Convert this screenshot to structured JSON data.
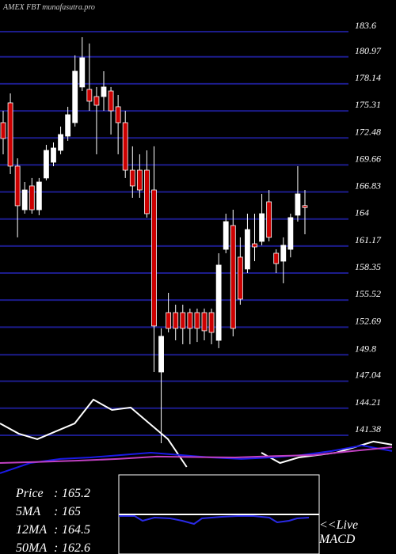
{
  "chart_data": {
    "type": "candlestick",
    "title": "AMEX FBT munafasutra.pro",
    "up_color": "#ffffff",
    "down_color": "#cc0000",
    "grid_color": "#1c1c8c",
    "ylim": [
      128.96,
      186.91
    ],
    "yticks": [
      183.6,
      180.97,
      178.14,
      175.31,
      172.48,
      169.66,
      166.83,
      164,
      161.17,
      158.35,
      155.52,
      152.69,
      149.8,
      147.04,
      144.21,
      141.38
    ],
    "open": [
      174.08,
      176.15,
      169.53,
      164.97,
      167.46,
      164.97,
      168.29,
      169.94,
      171.18,
      172.67,
      174.08,
      177.81,
      177.56,
      176.81,
      176.81,
      177.39,
      175.74,
      174.08,
      169.11,
      169.11,
      169.11,
      167.04,
      148.0,
      154.21,
      154.21,
      154.21,
      154.21,
      154.21,
      154.21,
      154.21,
      151.31,
      160.83,
      163.32,
      160.01,
      158.77,
      161.41,
      161.66,
      165.8,
      160.42,
      159.59,
      160.83,
      164.4,
      165.4
    ],
    "high": [
      175.32,
      177.14,
      170.35,
      167.87,
      168.29,
      168.29,
      171.76,
      172.01,
      173.67,
      175.74,
      181.12,
      183.02,
      182.36,
      177.81,
      179.46,
      177.81,
      176.98,
      175.32,
      171.6,
      170.77,
      171.18,
      171.6,
      152.56,
      156.28,
      155.04,
      155.04,
      154.63,
      154.63,
      154.63,
      154.63,
      160.42,
      164.56,
      164.97,
      162.08,
      164.56,
      164.56,
      166.63,
      167.04,
      160.83,
      162.08,
      164.56,
      169.53,
      167.04
    ],
    "low": [
      170.77,
      168.7,
      162.08,
      164.56,
      164.56,
      164.4,
      168.04,
      169.53,
      170.77,
      172.18,
      173.67,
      177.39,
      175.32,
      170.77,
      175.32,
      172.84,
      170.77,
      168.29,
      166.22,
      166.22,
      164.15,
      148.0,
      140.55,
      152.14,
      151.31,
      150.9,
      150.9,
      151.14,
      151.31,
      150.9,
      150.49,
      160.42,
      151.73,
      155.04,
      158.35,
      159.59,
      161.25,
      161.66,
      158.35,
      157.28,
      159.99,
      163.73,
      162.41
    ],
    "close": [
      172.42,
      169.53,
      165.39,
      167.04,
      164.97,
      167.87,
      171.18,
      171.43,
      172.84,
      174.91,
      179.46,
      180.87,
      176.32,
      175.9,
      177.81,
      175.32,
      174.08,
      169.11,
      167.46,
      167.04,
      164.56,
      152.81,
      151.73,
      152.56,
      152.56,
      152.56,
      152.56,
      152.56,
      152.31,
      152.14,
      159.18,
      163.73,
      152.56,
      155.62,
      162.9,
      161.08,
      164.56,
      162.08,
      159.34,
      161.25,
      164.15,
      166.63,
      165.2
    ],
    "lines": [
      {
        "color": "#ffffff",
        "values": [
          142.62,
          141.55,
          140.97,
          141.8,
          142.62,
          145.11,
          144.03,
          144.28,
          142.62,
          140.97,
          138.07,
          null,
          null,
          null,
          139.56,
          138.48,
          139.06,
          139.31,
          139.56,
          140.14,
          140.72,
          140.39
        ]
      },
      {
        "color": "#1a1ae6",
        "values": [
          137.41,
          138.48,
          138.9,
          139.06,
          139.31,
          139.56,
          139.31,
          139.06,
          138.9,
          139.06,
          139.31,
          139.73,
          140.31,
          139.73
        ]
      },
      {
        "color": "#c040c0",
        "values": [
          138.48,
          138.6,
          138.73,
          138.9,
          139.15,
          139.1,
          139.06,
          139.2,
          139.31,
          139.73,
          140.14
        ]
      }
    ],
    "info": [
      {
        "label": "Price",
        "value": 165.2
      },
      {
        "label": "5MA",
        "value": 165
      },
      {
        "label": "12MA",
        "value": 164.5
      },
      {
        "label": "50MA",
        "value": 162.6
      }
    ],
    "macd_label": [
      "<<Live",
      "MACD"
    ]
  }
}
